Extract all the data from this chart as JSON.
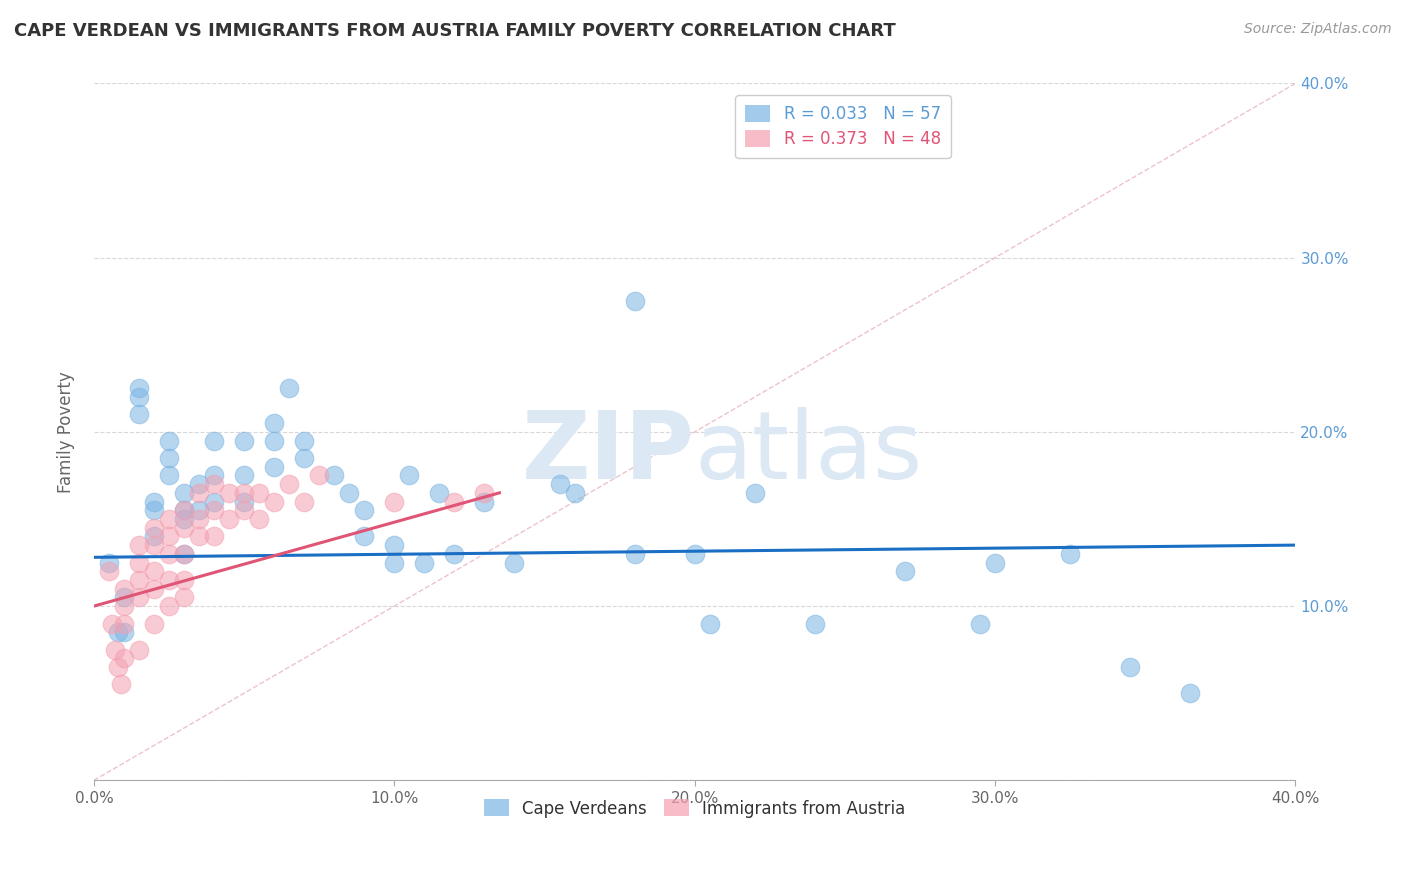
{
  "title": "CAPE VERDEAN VS IMMIGRANTS FROM AUSTRIA FAMILY POVERTY CORRELATION CHART",
  "source": "Source: ZipAtlas.com",
  "ylabel": "Family Poverty",
  "xlim": [
    0,
    0.4
  ],
  "ylim": [
    0,
    0.4
  ],
  "xticks": [
    0.0,
    0.1,
    0.2,
    0.3,
    0.4
  ],
  "yticks": [
    0.0,
    0.1,
    0.2,
    0.3,
    0.4
  ],
  "cape_verdean_color": "#7bb4e3",
  "austria_color": "#f4a0b0",
  "r_cape_verdean": 0.033,
  "n_cape_verdean": 57,
  "r_austria": 0.373,
  "n_austria": 48,
  "trend_blue_color": "#1a6fc4",
  "trend_pink_color": "#e05575",
  "background_color": "#ffffff",
  "grid_color": "#d8d8d8",
  "watermark": "ZIPatlas",
  "cv_x": [
    0.005,
    0.008,
    0.01,
    0.01,
    0.015,
    0.015,
    0.015,
    0.02,
    0.02,
    0.02,
    0.025,
    0.025,
    0.025,
    0.03,
    0.03,
    0.03,
    0.03,
    0.035,
    0.035,
    0.04,
    0.04,
    0.04,
    0.05,
    0.05,
    0.05,
    0.06,
    0.06,
    0.06,
    0.065,
    0.07,
    0.07,
    0.08,
    0.085,
    0.09,
    0.09,
    0.1,
    0.105,
    0.11,
    0.115,
    0.12,
    0.13,
    0.14,
    0.155,
    0.16,
    0.18,
    0.2,
    0.205,
    0.22,
    0.24,
    0.27,
    0.295,
    0.3,
    0.325,
    0.345,
    0.365,
    0.18,
    0.1
  ],
  "cv_y": [
    0.125,
    0.085,
    0.105,
    0.085,
    0.225,
    0.22,
    0.21,
    0.16,
    0.155,
    0.14,
    0.195,
    0.185,
    0.175,
    0.165,
    0.155,
    0.15,
    0.13,
    0.17,
    0.155,
    0.195,
    0.175,
    0.16,
    0.195,
    0.175,
    0.16,
    0.205,
    0.195,
    0.18,
    0.225,
    0.195,
    0.185,
    0.175,
    0.165,
    0.155,
    0.14,
    0.135,
    0.175,
    0.125,
    0.165,
    0.13,
    0.16,
    0.125,
    0.17,
    0.165,
    0.13,
    0.13,
    0.09,
    0.165,
    0.09,
    0.12,
    0.09,
    0.125,
    0.13,
    0.065,
    0.05,
    0.275,
    0.125
  ],
  "au_x": [
    0.005,
    0.006,
    0.007,
    0.008,
    0.009,
    0.01,
    0.01,
    0.01,
    0.01,
    0.015,
    0.015,
    0.015,
    0.015,
    0.015,
    0.02,
    0.02,
    0.02,
    0.02,
    0.02,
    0.025,
    0.025,
    0.025,
    0.025,
    0.025,
    0.03,
    0.03,
    0.03,
    0.03,
    0.03,
    0.035,
    0.035,
    0.035,
    0.04,
    0.04,
    0.04,
    0.045,
    0.045,
    0.05,
    0.05,
    0.055,
    0.055,
    0.06,
    0.065,
    0.07,
    0.075,
    0.1,
    0.12,
    0.13
  ],
  "au_y": [
    0.12,
    0.09,
    0.075,
    0.065,
    0.055,
    0.11,
    0.1,
    0.09,
    0.07,
    0.135,
    0.125,
    0.115,
    0.105,
    0.075,
    0.145,
    0.135,
    0.12,
    0.11,
    0.09,
    0.15,
    0.14,
    0.13,
    0.115,
    0.1,
    0.155,
    0.145,
    0.13,
    0.115,
    0.105,
    0.165,
    0.15,
    0.14,
    0.17,
    0.155,
    0.14,
    0.165,
    0.15,
    0.165,
    0.155,
    0.165,
    0.15,
    0.16,
    0.17,
    0.16,
    0.175,
    0.16,
    0.16,
    0.165
  ],
  "cv_trend_x": [
    0.0,
    0.4
  ],
  "cv_trend_y": [
    0.128,
    0.135
  ],
  "au_trend_x": [
    0.0,
    0.135
  ],
  "au_trend_y": [
    0.1,
    0.165
  ]
}
